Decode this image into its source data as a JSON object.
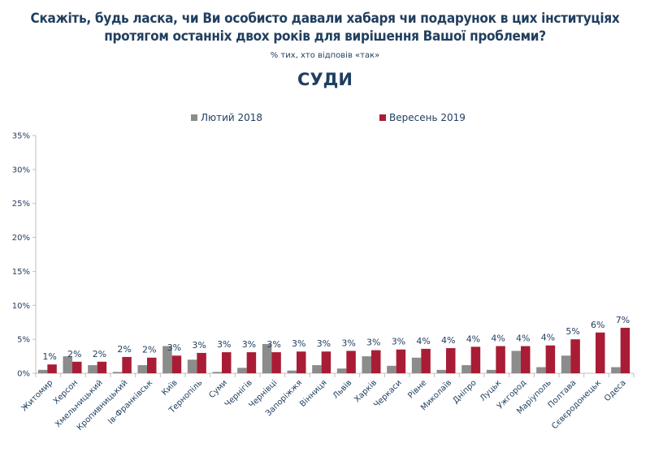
{
  "header": {
    "title_line1": "Скажіть, будь ласка, чи Ви особисто давали хабаря чи подарунок в цих інституціях",
    "title_line2": "протягом останніх двох років для вирішення Вашої проблеми?",
    "subtitle": "% тих, хто відповів «так»",
    "section": "СУДИ"
  },
  "colors": {
    "series_2018": "#8c8c8c",
    "series_2019": "#a81d35",
    "text": "#213f5f"
  },
  "chart_data": {
    "type": "bar",
    "title": "СУДИ",
    "xlabel": "",
    "ylabel": "",
    "ylim": [
      0,
      35
    ],
    "yticks": [
      0,
      5,
      10,
      15,
      20,
      25,
      30,
      35
    ],
    "ytick_labels": [
      "0%",
      "5%",
      "10%",
      "15%",
      "20%",
      "25%",
      "30%",
      "35%"
    ],
    "grid": false,
    "legend_position": "top",
    "categories": [
      "Житомир",
      "Херсон",
      "Хмельницький",
      "Кропивницький",
      "Ів-Франківськ",
      "Київ",
      "Тернопіль",
      "Суми",
      "Чернігів",
      "Чернівці",
      "Запоріжжя",
      "Вінниця",
      "Львів",
      "Харків",
      "Черкаси",
      "Рівне",
      "Миколаїв",
      "Дніпро",
      "Луцьк",
      "Ужгород",
      "Маріуполь",
      "Полтава",
      "Сєвєродонецьк",
      "Одеса"
    ],
    "series": [
      {
        "name": "Лютий 2018",
        "values": [
          0.5,
          2.5,
          1.2,
          0.2,
          1.2,
          4.0,
          2.0,
          0.2,
          0.8,
          4.3,
          0.4,
          1.2,
          0.7,
          2.5,
          1.1,
          2.3,
          0.5,
          1.2,
          0.5,
          3.3,
          0.9,
          2.6,
          0.0,
          0.9
        ]
      },
      {
        "name": "Вересень 2019",
        "values": [
          1.3,
          1.7,
          1.7,
          2.4,
          2.3,
          2.6,
          3.0,
          3.1,
          3.1,
          3.1,
          3.2,
          3.2,
          3.3,
          3.4,
          3.5,
          3.6,
          3.7,
          3.9,
          4.0,
          4.0,
          4.1,
          5.0,
          6.0,
          6.7
        ],
        "data_labels": [
          "1%",
          "2%",
          "2%",
          "2%",
          "2%",
          "3%",
          "3%",
          "3%",
          "3%",
          "3%",
          "3%",
          "3%",
          "3%",
          "3%",
          "3%",
          "4%",
          "4%",
          "4%",
          "4%",
          "4%",
          "4%",
          "5%",
          "6%",
          "7%"
        ]
      }
    ]
  }
}
